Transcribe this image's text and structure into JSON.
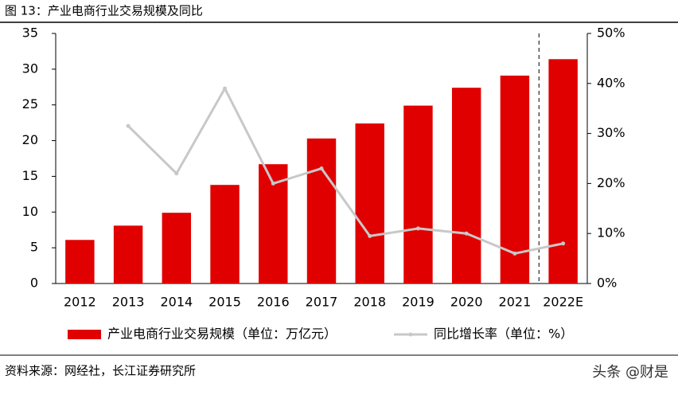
{
  "chart_data": {
    "type": "bar",
    "title": "图 13：产业电商行业交易规模及同比",
    "categories": [
      "2012",
      "2013",
      "2014",
      "2015",
      "2016",
      "2017",
      "2018",
      "2019",
      "2020",
      "2021",
      "2022E"
    ],
    "series": [
      {
        "name": "产业电商行业交易规模（单位：万亿元）",
        "type": "bar",
        "color": "#e00000",
        "values": [
          6.1,
          8.1,
          9.9,
          13.8,
          16.7,
          20.3,
          22.4,
          24.9,
          27.4,
          29.1,
          31.4
        ]
      },
      {
        "name": "同比增长率（单位：%）",
        "type": "line",
        "axis": "y2",
        "color": "#c8c8c8",
        "values": [
          null,
          31.5,
          22,
          39,
          20,
          23,
          9.5,
          11,
          10,
          6,
          8
        ]
      }
    ],
    "ylim": [
      0,
      35
    ],
    "yticks": [
      0,
      5,
      10,
      15,
      20,
      25,
      30,
      35
    ],
    "y2lim": [
      0,
      50
    ],
    "y2ticks": [
      {
        "value": 0,
        "label": "0%"
      },
      {
        "value": 10,
        "label": "10%"
      },
      {
        "value": 20,
        "label": "20%"
      },
      {
        "value": 30,
        "label": "30%"
      },
      {
        "value": 40,
        "label": "40%"
      },
      {
        "value": 50,
        "label": "50%"
      }
    ],
    "source": "资料来源：网经社，长江证券研究所",
    "watermark": "头条 @财是"
  }
}
